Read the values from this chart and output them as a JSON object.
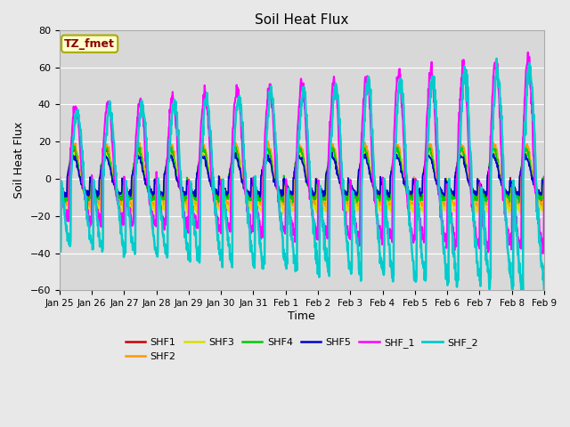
{
  "title": "Soil Heat Flux",
  "xlabel": "Time",
  "ylabel": "Soil Heat Flux",
  "ylim": [
    -60,
    80
  ],
  "yticks": [
    -60,
    -40,
    -20,
    0,
    20,
    40,
    60,
    80
  ],
  "fig_bg_color": "#e8e8e8",
  "plot_bg_color": "#d8d8d8",
  "grid_color": "#ffffff",
  "annotation_text": "TZ_fmet",
  "annotation_color": "#8b0000",
  "annotation_bg": "#ffffcc",
  "annotation_edge": "#aaaa00",
  "series": {
    "SHF1": {
      "color": "#cc0000",
      "lw": 1.2
    },
    "SHF2": {
      "color": "#ff9900",
      "lw": 1.2
    },
    "SHF3": {
      "color": "#dddd00",
      "lw": 1.2
    },
    "SHF4": {
      "color": "#00cc00",
      "lw": 1.2
    },
    "SHF5": {
      "color": "#0000cc",
      "lw": 1.2
    },
    "SHF_1": {
      "color": "#ff00ff",
      "lw": 1.5
    },
    "SHF_2": {
      "color": "#00cccc",
      "lw": 1.8
    }
  },
  "x_tick_labels": [
    "Jan 25",
    "Jan 26",
    "Jan 27",
    "Jan 28",
    "Jan 29",
    "Jan 30",
    "Jan 31",
    "Feb 1",
    "Feb 2",
    "Feb 3",
    "Feb 4",
    "Feb 5",
    "Feb 6",
    "Feb 7",
    "Feb 8",
    "Feb 9"
  ],
  "n_points": 1440,
  "figsize": [
    6.4,
    4.8
  ],
  "dpi": 100
}
